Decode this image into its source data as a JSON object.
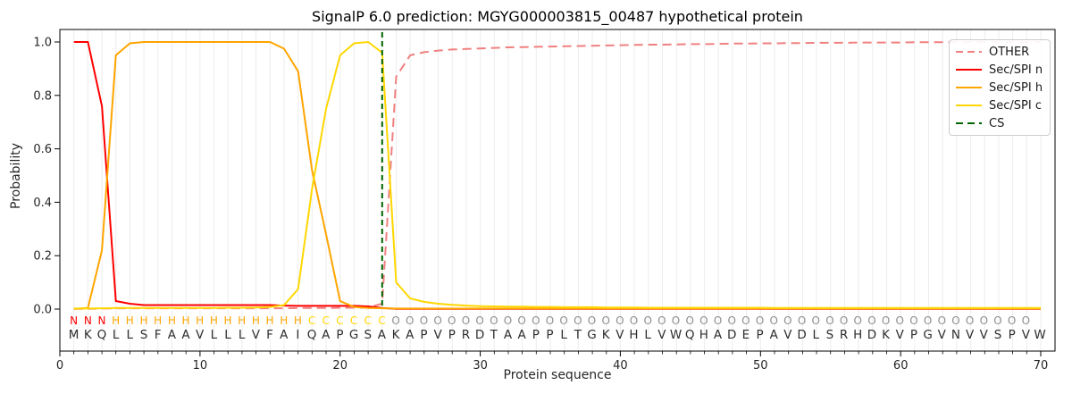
{
  "title": "SignalP 6.0 prediction: MGYG000003815_00487 hypothetical protein",
  "legend": {
    "items": [
      {
        "label": "OTHER",
        "color": "#f08080",
        "dashed": true
      },
      {
        "label": "Sec/SPI n",
        "color": "#ff0000",
        "dashed": false
      },
      {
        "label": "Sec/SPI h",
        "color": "#ffa500",
        "dashed": false
      },
      {
        "label": "Sec/SPI c",
        "color": "#ffd700",
        "dashed": false
      },
      {
        "label": "CS",
        "color": "#006400",
        "dashed": true
      }
    ]
  },
  "chart_data": {
    "type": "line",
    "title": "SignalP 6.0 prediction: MGYG000003815_00487 hypothetical protein",
    "xlabel": "Protein sequence",
    "ylabel": "Probability",
    "xlim": [
      0,
      71
    ],
    "ylim": [
      -0.16,
      1.05
    ],
    "xticks": [
      0,
      10,
      20,
      30,
      40,
      50,
      60,
      70
    ],
    "yticks": [
      0.0,
      0.2,
      0.4,
      0.6,
      0.8,
      1.0
    ],
    "grid": "vertical, one line per residue, light gray",
    "legend_position": "upper right",
    "x_start": 1,
    "series": [
      {
        "name": "OTHER",
        "color": "#f08080",
        "style": "dashed",
        "values": [
          0.001,
          0.001,
          0.002,
          0.003,
          0.003,
          0.003,
          0.003,
          0.003,
          0.003,
          0.003,
          0.003,
          0.003,
          0.003,
          0.003,
          0.003,
          0.003,
          0.004,
          0.004,
          0.004,
          0.005,
          0.005,
          0.006,
          0.02,
          0.87,
          0.95,
          0.962,
          0.968,
          0.972,
          0.974,
          0.976,
          0.978,
          0.98,
          0.981,
          0.982,
          0.983,
          0.984,
          0.985,
          0.986,
          0.987,
          0.988,
          0.989,
          0.99,
          0.99,
          0.991,
          0.992,
          0.992,
          0.993,
          0.994,
          0.994,
          0.995,
          0.995,
          0.996,
          0.996,
          0.997,
          0.997,
          0.997,
          0.998,
          0.998,
          0.998,
          0.998,
          0.999,
          0.999,
          0.999,
          0.999,
          0.999,
          1.0,
          1.0,
          1.0,
          1.0,
          1.0
        ]
      },
      {
        "name": "Sec/SPI n",
        "color": "#ff0000",
        "style": "solid",
        "values": [
          1.0,
          1.0,
          0.76,
          0.03,
          0.02,
          0.015,
          0.015,
          0.015,
          0.015,
          0.015,
          0.015,
          0.015,
          0.015,
          0.015,
          0.015,
          0.013,
          0.012,
          0.012,
          0.012,
          0.012,
          0.012,
          0.01,
          0.004,
          0.001,
          0.001,
          0.001,
          0.001,
          0.001,
          0.001,
          0.001,
          0.001,
          0.001,
          0.001,
          0.001,
          0.001,
          0.001,
          0.001,
          0.001,
          0.001,
          0.001,
          0.001,
          0.001,
          0.001,
          0.001,
          0.001,
          0.001,
          0.001,
          0.001,
          0.001,
          0.001,
          0.001,
          0.001,
          0.001,
          0.001,
          0.001,
          0.001,
          0.001,
          0.001,
          0.001,
          0.001,
          0.001,
          0.001,
          0.001,
          0.001,
          0.001,
          0.001,
          0.001,
          0.001,
          0.001,
          0.001
        ]
      },
      {
        "name": "Sec/SPI h",
        "color": "#ffa500",
        "style": "solid",
        "values": [
          0.001,
          0.004,
          0.22,
          0.95,
          0.995,
          1.0,
          1.0,
          1.0,
          1.0,
          1.0,
          1.0,
          1.0,
          1.0,
          1.0,
          1.0,
          0.975,
          0.89,
          0.52,
          0.28,
          0.03,
          0.008,
          0.004,
          0.003,
          0.002,
          0.002,
          0.002,
          0.002,
          0.002,
          0.002,
          0.002,
          0.002,
          0.002,
          0.002,
          0.002,
          0.002,
          0.002,
          0.002,
          0.002,
          0.002,
          0.002,
          0.002,
          0.002,
          0.002,
          0.002,
          0.002,
          0.002,
          0.002,
          0.002,
          0.002,
          0.002,
          0.002,
          0.002,
          0.002,
          0.002,
          0.002,
          0.002,
          0.002,
          0.002,
          0.002,
          0.002,
          0.002,
          0.002,
          0.002,
          0.002,
          0.002,
          0.002,
          0.002,
          0.002,
          0.002,
          0.002
        ]
      },
      {
        "name": "Sec/SPI c",
        "color": "#ffd700",
        "style": "solid",
        "values": [
          0.002,
          0.002,
          0.003,
          0.004,
          0.004,
          0.004,
          0.004,
          0.004,
          0.004,
          0.004,
          0.004,
          0.005,
          0.005,
          0.006,
          0.008,
          0.015,
          0.075,
          0.45,
          0.75,
          0.95,
          0.995,
          1.0,
          0.96,
          0.1,
          0.04,
          0.027,
          0.02,
          0.016,
          0.013,
          0.011,
          0.01,
          0.009,
          0.009,
          0.008,
          0.008,
          0.007,
          0.007,
          0.007,
          0.006,
          0.006,
          0.006,
          0.005,
          0.005,
          0.005,
          0.005,
          0.005,
          0.005,
          0.005,
          0.005,
          0.005,
          0.004,
          0.004,
          0.004,
          0.004,
          0.004,
          0.004,
          0.004,
          0.004,
          0.004,
          0.004,
          0.004,
          0.004,
          0.004,
          0.004,
          0.004,
          0.004,
          0.004,
          0.004,
          0.004,
          0.004
        ]
      }
    ],
    "cs_line": {
      "name": "CS",
      "color": "#006400",
      "style": "dashed",
      "x": 23
    },
    "sequence": "MKQLLSFAAVLLLVFAIQAPGSAKAPVPRDTAAPPLTGKVHLVWQHADEPAVDLSRHDKVPGVNVVSPVW",
    "residue_labels": "NNNHHHHHHHHHHHHHHCCCCCCOOOOOOOOOOOOOOOOOOOOOOOOOOOOOOOOOOOOOOOOOOOOOO",
    "label_colors": {
      "N": "#ff0000",
      "H": "#ffa500",
      "C": "#ffd700",
      "O": "#8e8e8e"
    },
    "residue_color": "#2e2e2e"
  }
}
